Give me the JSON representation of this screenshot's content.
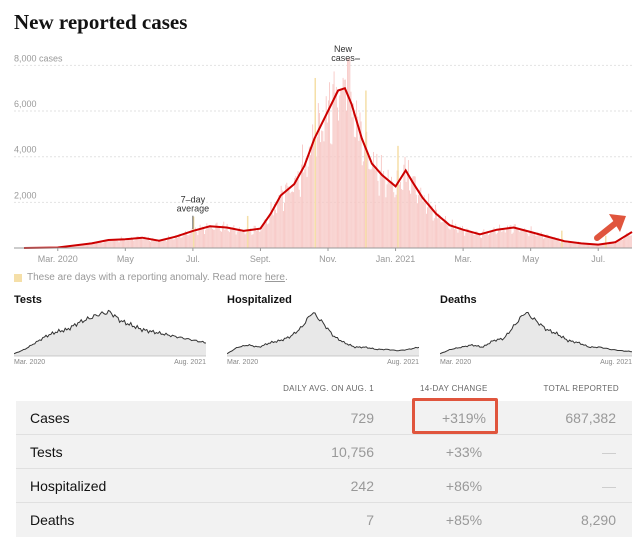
{
  "title": "New reported cases",
  "chart_data": {
    "type": "bar",
    "title": "New reported cases",
    "ylabel": "cases",
    "y_ticks": [
      "8,000 cases",
      "6,000",
      "4,000",
      "2,000"
    ],
    "y_tick_values": [
      8000,
      6000,
      4000,
      2000
    ],
    "ylim": [
      0,
      8500
    ],
    "x_ticks": [
      "Mar. 2020",
      "May",
      "Jul.",
      "Sept.",
      "Nov.",
      "Jan. 2021",
      "Mar.",
      "May",
      "Jul."
    ],
    "x_tick_months": [
      2,
      4,
      6,
      8,
      10,
      12,
      14,
      16,
      18
    ],
    "xlim_months": [
      1.0,
      19.0
    ],
    "annotations": [
      {
        "text": "7–day average",
        "month": 6.0,
        "value": 450
      },
      {
        "text": "New cases",
        "month": 10.8,
        "value": 8300
      }
    ],
    "series": [
      {
        "name": "7-day average",
        "type": "line",
        "color": "#cc0000",
        "points": [
          [
            1.0,
            0
          ],
          [
            2.0,
            20
          ],
          [
            3.0,
            200
          ],
          [
            3.5,
            350
          ],
          [
            4.0,
            380
          ],
          [
            4.5,
            450
          ],
          [
            5.0,
            320
          ],
          [
            5.5,
            500
          ],
          [
            6.0,
            750
          ],
          [
            6.5,
            950
          ],
          [
            7.0,
            900
          ],
          [
            7.5,
            750
          ],
          [
            8.0,
            850
          ],
          [
            8.3,
            1500
          ],
          [
            8.6,
            2300
          ],
          [
            9.0,
            2800
          ],
          [
            9.3,
            3600
          ],
          [
            9.6,
            4800
          ],
          [
            10.0,
            6000
          ],
          [
            10.3,
            6900
          ],
          [
            10.5,
            7000
          ],
          [
            10.7,
            6300
          ],
          [
            11.0,
            4800
          ],
          [
            11.3,
            3700
          ],
          [
            11.6,
            3200
          ],
          [
            12.0,
            2700
          ],
          [
            12.3,
            3400
          ],
          [
            12.5,
            2900
          ],
          [
            12.8,
            2200
          ],
          [
            13.2,
            1500
          ],
          [
            13.6,
            1000
          ],
          [
            14.0,
            800
          ],
          [
            14.5,
            600
          ],
          [
            15.0,
            800
          ],
          [
            15.5,
            900
          ],
          [
            16.0,
            700
          ],
          [
            16.5,
            500
          ],
          [
            17.0,
            300
          ],
          [
            17.5,
            200
          ],
          [
            18.0,
            150
          ],
          [
            18.5,
            250
          ],
          [
            19.0,
            700
          ]
        ]
      },
      {
        "name": "Daily new cases",
        "type": "bar",
        "color": "#f7c7c4",
        "peak_value": 8300,
        "peak_month": 10.6
      }
    ]
  },
  "anomaly_note": {
    "text": "These are days with a reporting anomaly. Read more",
    "link": "here",
    "end": "."
  },
  "mini_charts": [
    {
      "title": "Tests",
      "start": "Mar. 2020",
      "end": "Aug. 2021",
      "values": [
        0.05,
        0.15,
        0.3,
        0.45,
        0.55,
        0.6,
        0.75,
        0.85,
        0.95,
        1.0,
        0.8,
        0.7,
        0.6,
        0.55,
        0.5,
        0.45,
        0.4,
        0.35,
        0.3
      ]
    },
    {
      "title": "Hospitalized",
      "start": "Mar. 2020",
      "end": "Aug. 2021",
      "values": [
        0.05,
        0.2,
        0.25,
        0.2,
        0.3,
        0.35,
        0.45,
        0.65,
        1.0,
        0.75,
        0.45,
        0.3,
        0.2,
        0.2,
        0.15,
        0.15,
        0.12,
        0.15,
        0.2
      ]
    },
    {
      "title": "Deaths",
      "start": "Mar. 2020",
      "end": "Aug. 2021",
      "values": [
        0.05,
        0.15,
        0.2,
        0.25,
        0.2,
        0.35,
        0.4,
        0.7,
        1.0,
        0.8,
        0.6,
        0.5,
        0.35,
        0.3,
        0.2,
        0.2,
        0.15,
        0.12,
        0.1
      ]
    }
  ],
  "table": {
    "headers": [
      "DAILY AVG. ON AUG. 1",
      "14-DAY CHANGE",
      "TOTAL REPORTED"
    ],
    "rows": [
      {
        "label": "Cases",
        "avg": "729",
        "change": "+319%",
        "total": "687,382"
      },
      {
        "label": "Tests",
        "avg": "10,756",
        "change": "+33%",
        "total": "—"
      },
      {
        "label": "Hospitalized",
        "avg": "242",
        "change": "+86%",
        "total": "—"
      },
      {
        "label": "Deaths",
        "avg": "7",
        "change": "+85%",
        "total": "8,290"
      }
    ]
  },
  "colors": {
    "accent": "#cc0000",
    "bar": "#f7c7c4",
    "anomaly": "#f5dfa8",
    "highlight": "#e0553d",
    "arrow": "#e0553d"
  }
}
